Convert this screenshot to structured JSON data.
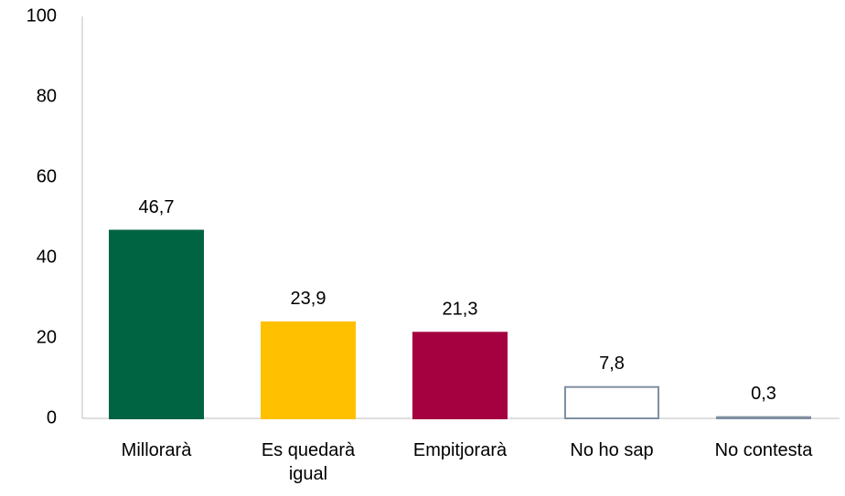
{
  "chart_data": {
    "type": "bar",
    "categories": [
      "Millorarà",
      "Es quedarà igual",
      "Empitjorarà",
      "No ho sap",
      "No contesta"
    ],
    "values": [
      46.7,
      23.9,
      21.3,
      7.8,
      0.3
    ],
    "value_labels": [
      "46,7",
      "23,9",
      "21,3",
      "7,8",
      "0,3"
    ],
    "colors": [
      "#006341",
      "#ffc000",
      "#a50040",
      "#ffffff",
      "#ffffff"
    ],
    "edge_colors": [
      "#006341",
      "#ffc000",
      "#a50040",
      "#7f8fa0",
      "#7f8fa0"
    ],
    "ylim": [
      0,
      100
    ],
    "yticks": [
      0,
      20,
      40,
      60,
      80,
      100
    ],
    "grid": false
  }
}
